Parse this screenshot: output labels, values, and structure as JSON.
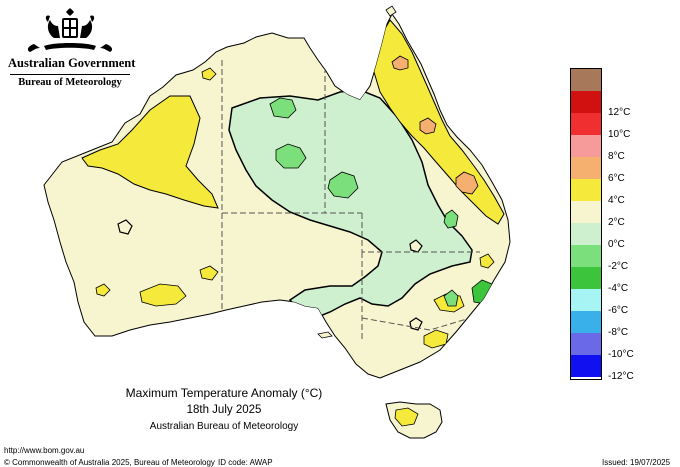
{
  "header": {
    "government": "Australian Government",
    "bureau": "Bureau of Meteorology"
  },
  "map": {
    "title": "Maximum Temperature Anomaly (°C)",
    "date": "18th July 2025",
    "organisation": "Australian Bureau of Meteorology"
  },
  "legend": {
    "items": [
      {
        "label": "",
        "color": "#a8785a"
      },
      {
        "label": "12°C",
        "color": "#d11010"
      },
      {
        "label": "10°C",
        "color": "#f03030"
      },
      {
        "label": "8°C",
        "color": "#f79a9a"
      },
      {
        "label": "6°C",
        "color": "#f5b070"
      },
      {
        "label": "4°C",
        "color": "#f5e93b"
      },
      {
        "label": "2°C",
        "color": "#f7f5cf"
      },
      {
        "label": "0°C",
        "color": "#cff0cf"
      },
      {
        "label": "-2°C",
        "color": "#7be07b"
      },
      {
        "label": "-4°C",
        "color": "#3cc43c"
      },
      {
        "label": "-6°C",
        "color": "#a6f4f4"
      },
      {
        "label": "-8°C",
        "color": "#3ab0ea"
      },
      {
        "label": "-10°C",
        "color": "#6a6ae8"
      },
      {
        "label": "-12°C",
        "color": "#1010f0"
      }
    ]
  },
  "footer": {
    "url": "http://www.bom.gov.au",
    "copyright": "© Commonwealth of Australia 2025, Bureau of Meteorology",
    "id_code": "ID code: AWAP",
    "issued": "Issued: 19/07/2025"
  }
}
